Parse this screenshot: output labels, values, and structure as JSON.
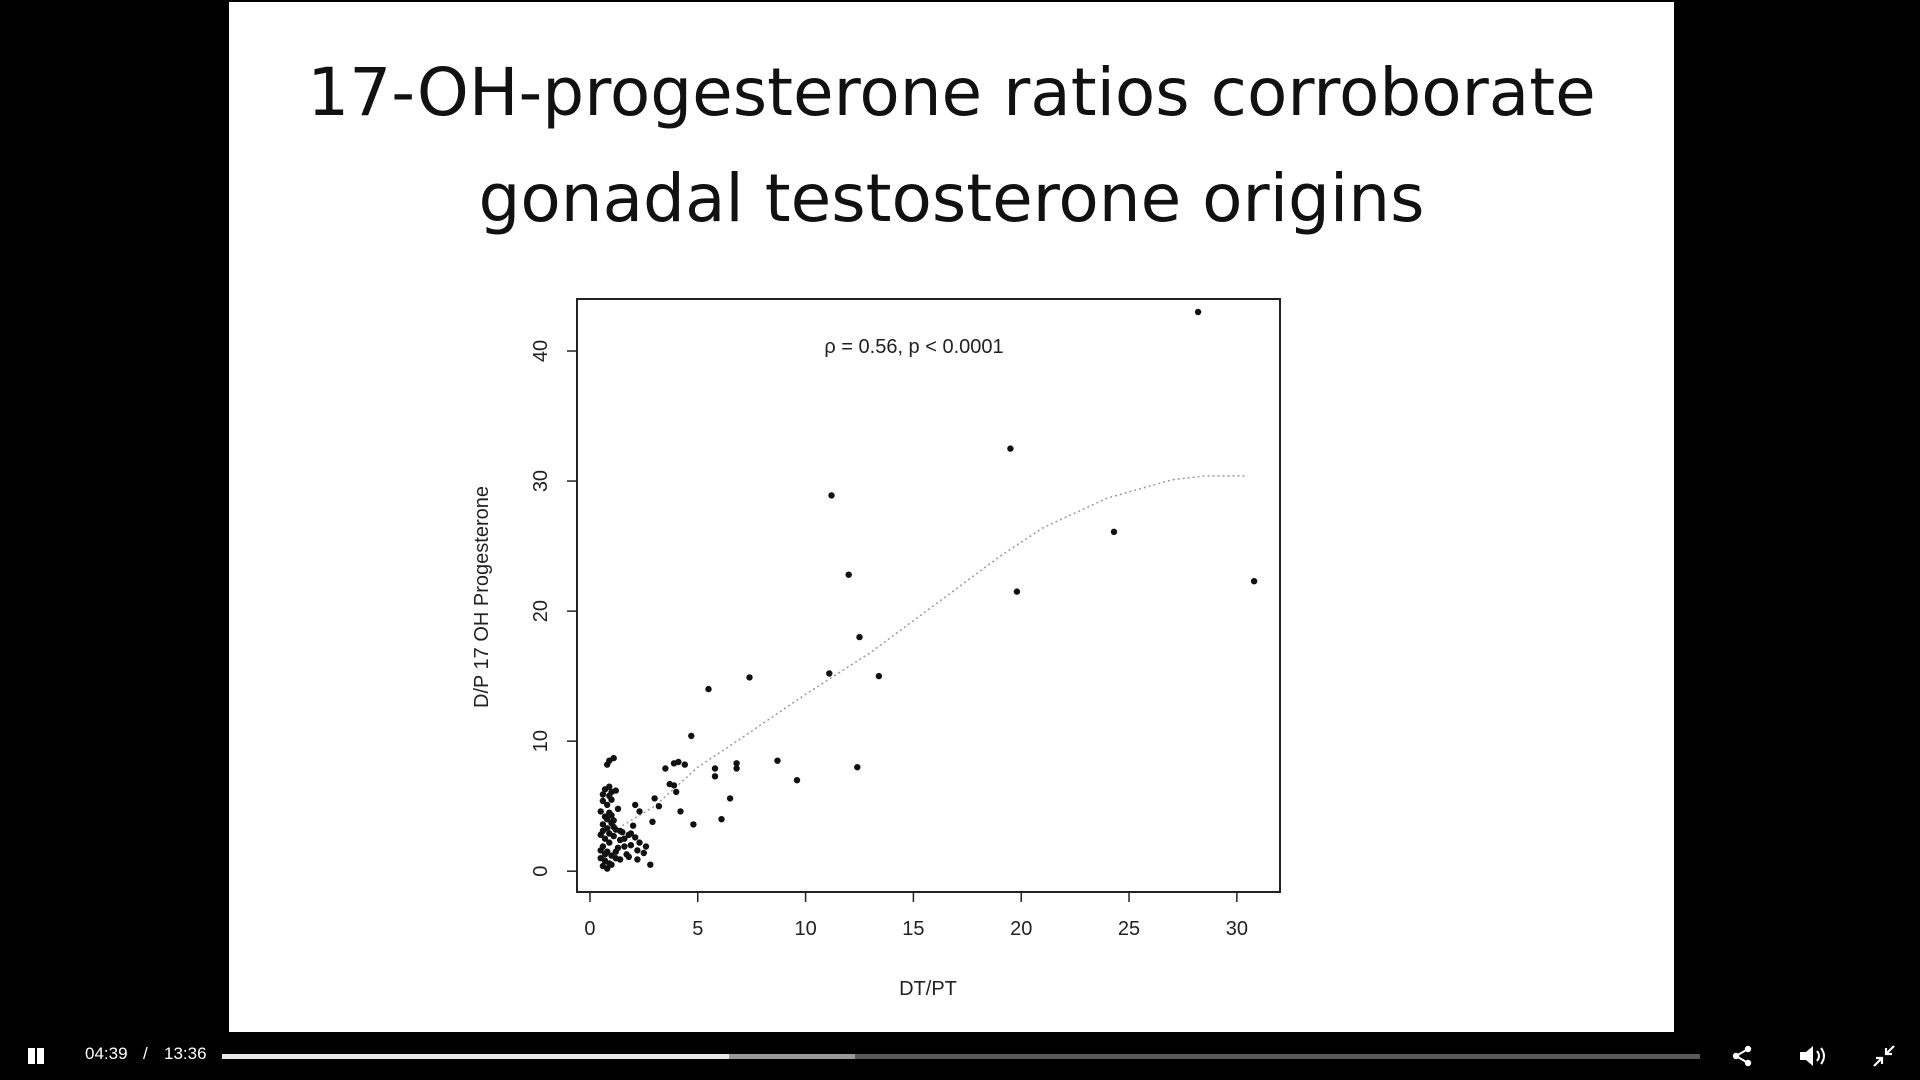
{
  "slide": {
    "title_line1": "17-OH-progesterone ratios corroborate",
    "title_line2": "gonadal testosterone origins"
  },
  "chart_data": {
    "type": "scatter",
    "xlabel": "DT/PT",
    "ylabel": "D/P 17 OH Progesterone",
    "annotation": "ρ = 0.56, p < 0.0001",
    "xlim": [
      -0.6,
      32
    ],
    "ylim": [
      -1.6,
      44
    ],
    "xticks": [
      0,
      5,
      10,
      15,
      20,
      25,
      30
    ],
    "yticks": [
      0,
      10,
      20,
      30,
      40
    ],
    "grid": false,
    "smoother": [
      [
        1.5,
        3.5
      ],
      [
        3,
        5
      ],
      [
        5,
        8
      ],
      [
        7,
        10.2
      ],
      [
        10,
        13.6
      ],
      [
        13,
        16.8
      ],
      [
        16,
        20.5
      ],
      [
        19,
        24.2
      ],
      [
        21,
        26.4
      ],
      [
        24,
        28.7
      ],
      [
        27,
        30.1
      ],
      [
        28.5,
        30.4
      ],
      [
        30.5,
        30.4
      ]
    ],
    "points": [
      [
        28.2,
        43
      ],
      [
        19.5,
        32.5
      ],
      [
        11.2,
        28.9
      ],
      [
        24.3,
        26.1
      ],
      [
        12,
        22.8
      ],
      [
        30.8,
        22.3
      ],
      [
        19.8,
        21.5
      ],
      [
        12.5,
        18
      ],
      [
        11.1,
        15.2
      ],
      [
        13.4,
        15
      ],
      [
        7.4,
        14.9
      ],
      [
        5.5,
        14
      ],
      [
        4.7,
        10.4
      ],
      [
        0.9,
        8.5
      ],
      [
        1.1,
        8.7
      ],
      [
        0.8,
        8.2
      ],
      [
        3.5,
        7.9
      ],
      [
        3.9,
        8.3
      ],
      [
        4.1,
        8.4
      ],
      [
        4.4,
        8.2
      ],
      [
        5.8,
        7.9
      ],
      [
        5.8,
        7.3
      ],
      [
        6.8,
        8.3
      ],
      [
        6.8,
        7.9
      ],
      [
        8.7,
        8.5
      ],
      [
        9.6,
        7
      ],
      [
        12.4,
        8
      ],
      [
        3.7,
        6.7
      ],
      [
        3.9,
        6.6
      ],
      [
        4,
        6.1
      ],
      [
        6.5,
        5.6
      ],
      [
        6.1,
        4
      ],
      [
        4.2,
        4.6
      ],
      [
        4.8,
        3.6
      ],
      [
        3.2,
        5
      ],
      [
        3,
        5.6
      ],
      [
        2.9,
        3.8
      ],
      [
        2.8,
        0.5
      ],
      [
        0.7,
        6.3
      ],
      [
        0.9,
        6.5
      ],
      [
        1.0,
        6.1
      ],
      [
        1.2,
        6.2
      ],
      [
        0.6,
        5.4
      ],
      [
        0.8,
        5.1
      ],
      [
        1.0,
        5.5
      ],
      [
        1.3,
        4.8
      ],
      [
        0.5,
        4.6
      ],
      [
        0.7,
        4.2
      ],
      [
        0.9,
        4.5
      ],
      [
        1.1,
        3.9
      ],
      [
        0.6,
        3.6
      ],
      [
        0.8,
        3.3
      ],
      [
        1.0,
        3.7
      ],
      [
        1.2,
        3.2
      ],
      [
        1.5,
        3.0
      ],
      [
        1.8,
        2.8
      ],
      [
        2.1,
        2.6
      ],
      [
        2.3,
        2.2
      ],
      [
        1.4,
        2.4
      ],
      [
        1.6,
        1.9
      ],
      [
        1.9,
        2.0
      ],
      [
        2.2,
        1.6
      ],
      [
        2.5,
        1.4
      ],
      [
        2.3,
        4.6
      ],
      [
        2.0,
        3.5
      ],
      [
        2.1,
        5.1
      ],
      [
        2.6,
        1.9
      ],
      [
        1.7,
        1.3
      ],
      [
        0.5,
        2.8
      ],
      [
        0.7,
        2.5
      ],
      [
        0.9,
        2.2
      ],
      [
        1.1,
        2.7
      ],
      [
        1.3,
        1.8
      ],
      [
        0.6,
        1.9
      ],
      [
        0.8,
        1.5
      ],
      [
        1.0,
        1.2
      ],
      [
        1.2,
        1.0
      ],
      [
        0.5,
        1.0
      ],
      [
        0.7,
        0.8
      ],
      [
        0.9,
        0.6
      ],
      [
        0.6,
        0.4
      ],
      [
        0.8,
        0.2
      ],
      [
        1.0,
        0.5
      ],
      [
        1.4,
        0.9
      ],
      [
        1.8,
        1.1
      ],
      [
        2.2,
        0.9
      ],
      [
        0.5,
        1.6
      ],
      [
        0.7,
        1.3
      ],
      [
        1.2,
        1.5
      ],
      [
        1.6,
        2.5
      ],
      [
        1.9,
        2.9
      ],
      [
        0.6,
        3.1
      ],
      [
        0.9,
        2.9
      ],
      [
        1.1,
        3.4
      ],
      [
        1.4,
        3.1
      ],
      [
        0.8,
        4.0
      ],
      [
        1.0,
        4.3
      ],
      [
        0.6,
        5.9
      ],
      [
        0.9,
        5.8
      ]
    ]
  },
  "player": {
    "current_time": "04:39",
    "separator": "/",
    "duration": "13:36",
    "progress_played": 0.343,
    "progress_buffered": 0.428
  }
}
